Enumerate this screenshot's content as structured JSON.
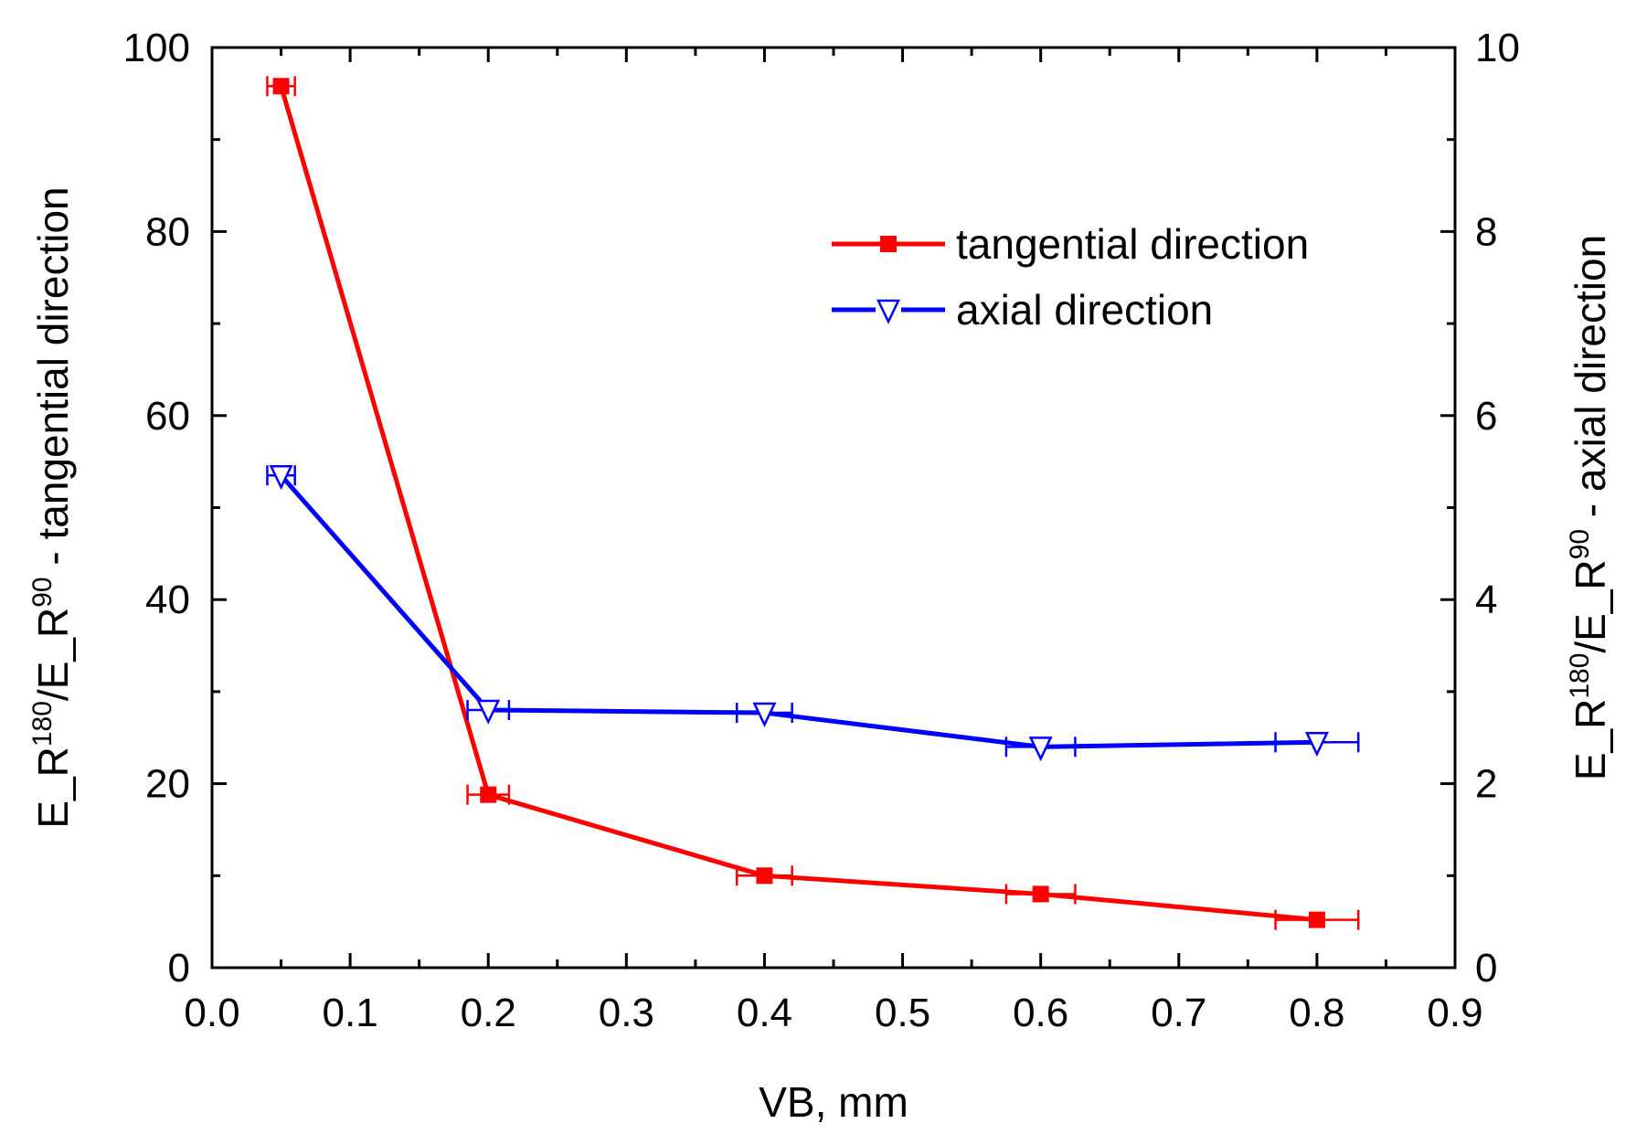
{
  "chart_data": {
    "type": "line",
    "xlabel": "VB, mm",
    "ylabel_left": {
      "prefix": "E_R",
      "sup1": "180",
      "mid": "/E_R",
      "sup2": "90",
      "suffix": " - tangential direction"
    },
    "ylabel_right": {
      "prefix": "E_R",
      "sup1": "180",
      "mid": "/E_R",
      "sup2": "90",
      "suffix": " - axial direction"
    },
    "xlim": [
      0.0,
      0.9
    ],
    "ylim_left": [
      0,
      100
    ],
    "ylim_right": [
      0,
      10
    ],
    "x_ticks": [
      "0.0",
      "0.1",
      "0.2",
      "0.3",
      "0.4",
      "0.5",
      "0.6",
      "0.7",
      "0.8",
      "0.9"
    ],
    "y_left_ticks": [
      "0",
      "20",
      "40",
      "60",
      "80",
      "100"
    ],
    "y_right_ticks": [
      "0",
      "2",
      "4",
      "6",
      "8",
      "10"
    ],
    "legend_position": "top-right",
    "series": [
      {
        "name": "tangential direction",
        "axis": "left",
        "color": "#ff0000",
        "marker": "filled-square",
        "x": [
          0.05,
          0.2,
          0.4,
          0.6,
          0.8
        ],
        "y": [
          95.8,
          18.8,
          10.0,
          8.0,
          5.2
        ],
        "xerr": [
          0.01,
          0.015,
          0.02,
          0.025,
          0.03
        ]
      },
      {
        "name": "axial direction",
        "axis": "right",
        "color": "#0000ff",
        "marker": "open-triangle-down",
        "x": [
          0.05,
          0.2,
          0.4,
          0.6,
          0.8
        ],
        "y": [
          5.35,
          2.8,
          2.77,
          2.4,
          2.45
        ],
        "xerr": [
          0.01,
          0.015,
          0.02,
          0.025,
          0.03
        ]
      }
    ]
  }
}
